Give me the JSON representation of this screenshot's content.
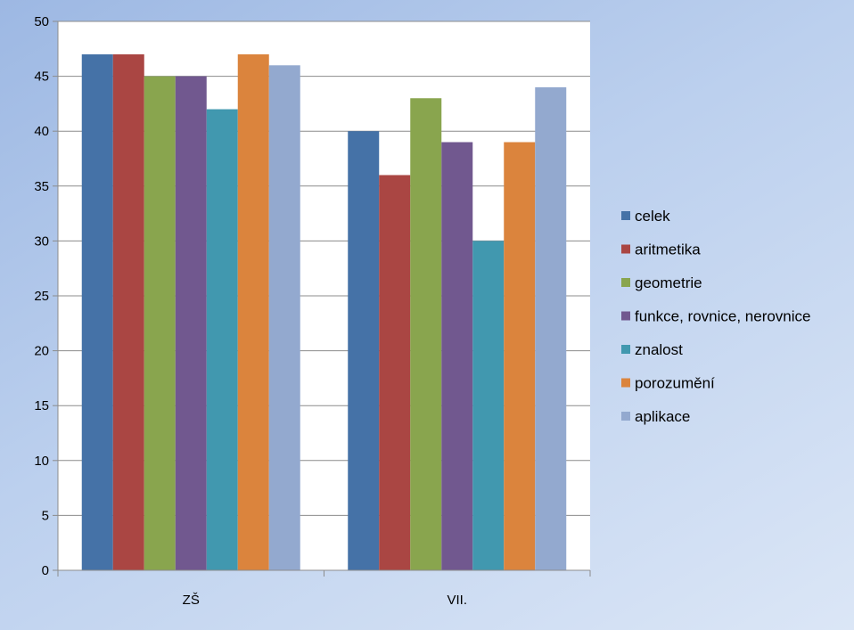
{
  "chart_data": {
    "type": "bar",
    "title": "",
    "xlabel": "",
    "ylabel": "",
    "categories": [
      "ZŠ",
      "VII."
    ],
    "ylim": [
      0,
      50
    ],
    "yticks": [
      0,
      5,
      10,
      15,
      20,
      25,
      30,
      35,
      40,
      45,
      50
    ],
    "grid": true,
    "legend_position": "right",
    "series": [
      {
        "name": "celek",
        "color": "#4572a7",
        "values": [
          47,
          40
        ]
      },
      {
        "name": "aritmetika",
        "color": "#aa4643",
        "values": [
          47,
          36
        ]
      },
      {
        "name": "geometrie",
        "color": "#89a54e",
        "values": [
          45,
          43
        ]
      },
      {
        "name": "funkce, rovnice, nerovnice",
        "color": "#71588f",
        "values": [
          45,
          39
        ]
      },
      {
        "name": "znalost",
        "color": "#4198af",
        "values": [
          42,
          30
        ]
      },
      {
        "name": "porozumění",
        "color": "#db843d",
        "values": [
          47,
          39
        ]
      },
      {
        "name": "aplikace",
        "color": "#93a9cf",
        "values": [
          46,
          44
        ]
      }
    ]
  }
}
